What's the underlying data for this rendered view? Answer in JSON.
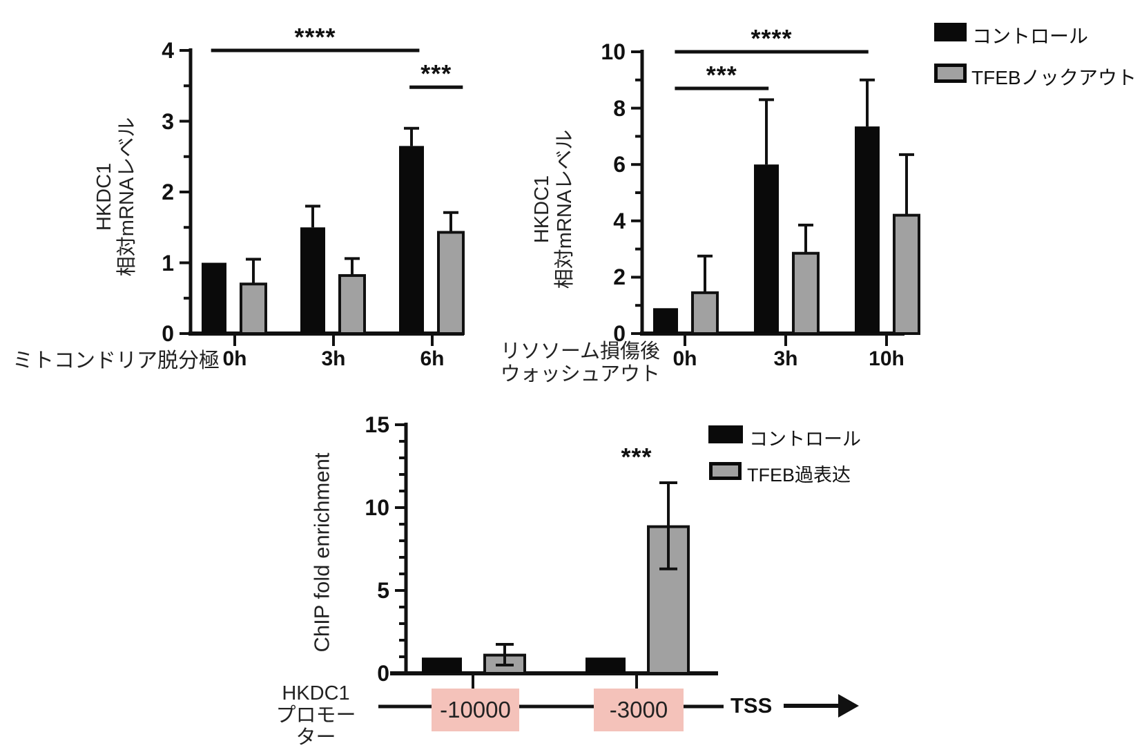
{
  "figure": {
    "background": "#ffffff",
    "colors": {
      "control": "#0a0a0a",
      "treated": "#a1a1a1",
      "promoter_box": "#f4c2ba",
      "axis": "#111111"
    }
  },
  "legends": {
    "top": {
      "items": [
        {
          "label": "コントロール",
          "color": "#0a0a0a",
          "style": "solid"
        },
        {
          "label": "TFEBノックアウト",
          "color": "#a1a1a1",
          "style": "gray"
        }
      ]
    },
    "bottom": {
      "items": [
        {
          "label": "コントロール",
          "color": "#0a0a0a",
          "style": "solid"
        },
        {
          "label": "TFEB過表达",
          "color": "#a1a1a1",
          "style": "gray"
        }
      ]
    }
  },
  "chart_data": [
    {
      "id": "mito-depolarization",
      "type": "bar",
      "title": "",
      "xlabel": "ミトコンドリア脱分極",
      "ylabel_lines": [
        "HKDC1",
        "相対mRNAレベル"
      ],
      "categories": [
        "0h",
        "3h",
        "6h"
      ],
      "series": [
        {
          "name": "コントロール",
          "color": "#0a0a0a",
          "values": [
            1.0,
            1.5,
            2.65
          ],
          "err_up": [
            0,
            0.3,
            0.25
          ]
        },
        {
          "name": "TFEBノックアウト",
          "color": "#a1a1a1",
          "values": [
            0.7,
            0.82,
            1.43
          ],
          "err_up": [
            0.35,
            0.24,
            0.28
          ]
        }
      ],
      "ylim": [
        0,
        4
      ],
      "yticks": [
        0,
        1,
        2,
        3,
        4
      ],
      "minor_step": 0.5,
      "grid": false,
      "legend_position": "top-right",
      "annotations": [
        {
          "label": "****",
          "y": 4.0,
          "x1": -0.24,
          "x2": 1.87,
          "line": true
        },
        {
          "label": "***",
          "y": 3.48,
          "x1": 1.77,
          "x2": 2.31,
          "line": true
        }
      ]
    },
    {
      "id": "lysosome-washout",
      "type": "bar",
      "title": "",
      "xlabel_lines": [
        "リソソーム損傷後",
        "ウォッシュアウト"
      ],
      "ylabel_lines": [
        "HKDC1",
        "相対mRNAレベル"
      ],
      "categories": [
        "0h",
        "3h",
        "10h"
      ],
      "series": [
        {
          "name": "コントロール",
          "color": "#0a0a0a",
          "values": [
            0.9,
            6.0,
            7.35
          ],
          "err_up": [
            0,
            2.3,
            1.65
          ]
        },
        {
          "name": "TFEBノックアウト",
          "color": "#a1a1a1",
          "values": [
            1.45,
            2.85,
            4.2
          ],
          "err_up": [
            1.3,
            1.0,
            2.15
          ]
        }
      ],
      "ylim": [
        0,
        10
      ],
      "yticks": [
        0,
        2,
        4,
        6,
        8,
        10
      ],
      "minor_step": 1,
      "grid": false,
      "legend_position": "top-right",
      "annotations": [
        {
          "label": "****",
          "y": 10.0,
          "x1": -0.1,
          "x2": 1.82,
          "line": true
        },
        {
          "label": "***",
          "y": 8.7,
          "x1": -0.1,
          "x2": 0.83,
          "line": true
        }
      ]
    },
    {
      "id": "chip-enrichment",
      "type": "bar",
      "title": "",
      "ylabel": "ChIP fold enrichment",
      "categories": [
        "-10000",
        "-3000"
      ],
      "series": [
        {
          "name": "コントロール",
          "color": "#0a0a0a",
          "values": [
            0.95,
            0.95
          ],
          "err_up": [
            0,
            0
          ],
          "err_down": [
            0,
            0
          ]
        },
        {
          "name": "TFEB過表达",
          "color": "#a1a1a1",
          "values": [
            1.1,
            8.85
          ],
          "err_up": [
            0.65,
            2.65
          ],
          "err_down": [
            0.6,
            2.55
          ]
        }
      ],
      "ylim": [
        0,
        15
      ],
      "yticks": [
        0,
        5,
        10,
        15
      ],
      "minor_step": 1,
      "grid": false,
      "legend_position": "top-right",
      "annotations": [
        {
          "label": "***",
          "y": 12.9,
          "x": 1.0,
          "line": false
        }
      ],
      "promoter": {
        "label_lines": [
          "HKDC1",
          "プロモーター"
        ],
        "boxes": [
          "-10000",
          "-3000"
        ],
        "tss_label": "TSS",
        "box_color": "#f4c2ba"
      }
    }
  ]
}
